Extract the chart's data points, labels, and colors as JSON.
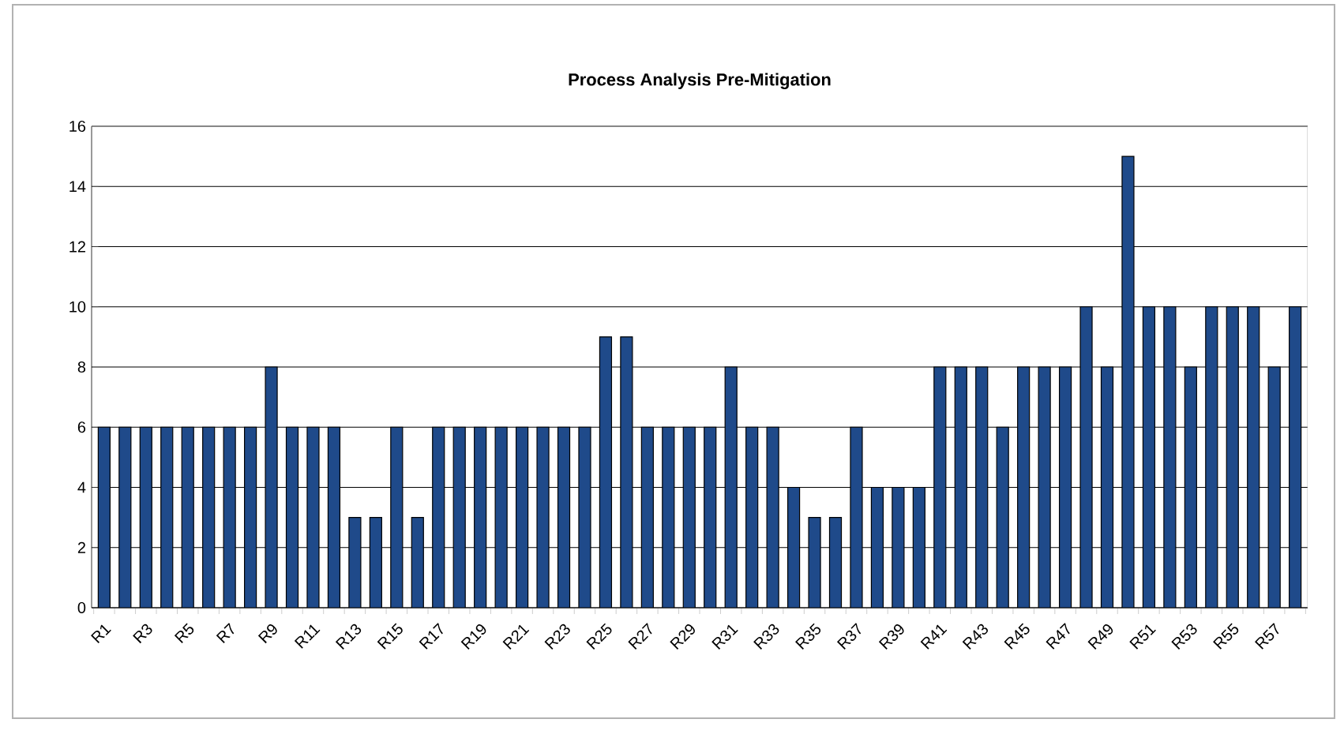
{
  "chart_data": {
    "type": "bar",
    "title": "Process Analysis Pre-Mitigation",
    "categories": [
      "R1",
      null,
      "R3",
      null,
      "R5",
      null,
      "R7",
      null,
      "R9",
      null,
      "R11",
      null,
      "R13",
      null,
      "R15",
      null,
      "R17",
      null,
      "R19",
      null,
      "R21",
      null,
      "R23",
      null,
      "R25",
      null,
      "R27",
      null,
      "R29",
      null,
      "R31",
      null,
      "R33",
      null,
      "R35",
      null,
      "R37",
      null,
      "R39",
      null,
      "R41",
      null,
      "R43",
      null,
      "R45",
      null,
      "R47",
      null,
      "R49",
      null,
      "R51",
      null,
      "R53",
      null,
      "R55",
      null,
      "R57",
      null
    ],
    "values": [
      6,
      6,
      6,
      6,
      6,
      6,
      6,
      6,
      8,
      6,
      6,
      6,
      3,
      3,
      6,
      3,
      6,
      6,
      6,
      6,
      6,
      6,
      6,
      6,
      9,
      9,
      6,
      6,
      6,
      6,
      8,
      6,
      6,
      4,
      3,
      3,
      6,
      4,
      4,
      4,
      8,
      8,
      8,
      6,
      8,
      8,
      8,
      10,
      8,
      15,
      10,
      10,
      8,
      10,
      10,
      10,
      8,
      10
    ],
    "color": "#1f4a8a",
    "ylim": [
      0,
      16
    ],
    "yticks": [
      0,
      2,
      4,
      6,
      8,
      10,
      12,
      14,
      16
    ],
    "grid": "y"
  }
}
